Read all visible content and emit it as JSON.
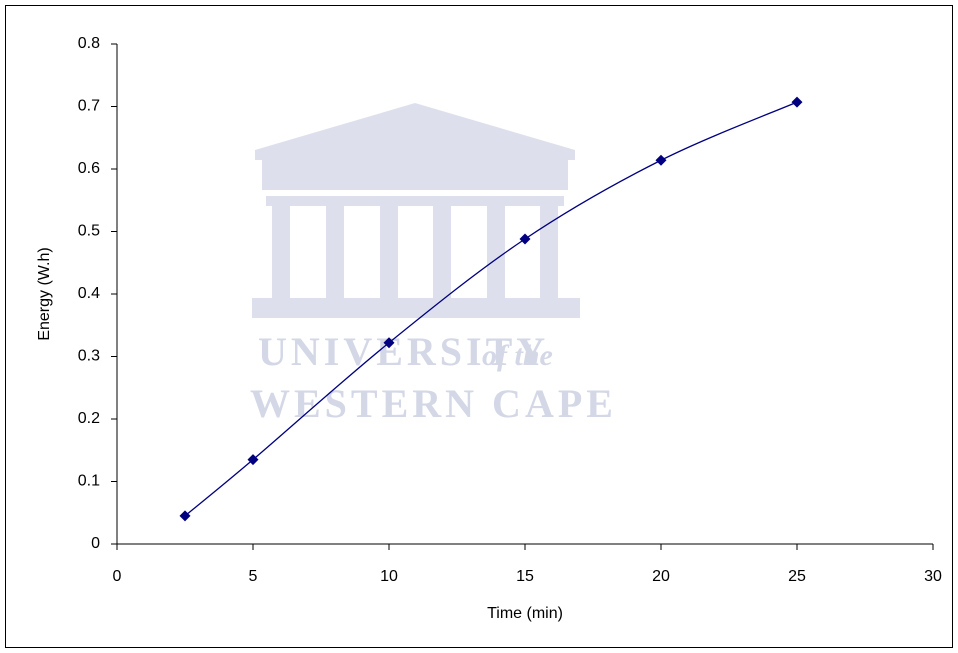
{
  "chart_data": {
    "type": "line",
    "smooth": true,
    "marker": "diamond",
    "x_label": "Time (min)",
    "y_label": "Energy (W.h)",
    "x": [
      2.5,
      5,
      10,
      15,
      20,
      25
    ],
    "series": [
      {
        "color": "#000080",
        "values": [
          0.045,
          0.135,
          0.322,
          0.488,
          0.614,
          0.707
        ]
      }
    ],
    "xlim": [
      0,
      30
    ],
    "xticks": [
      0,
      5,
      10,
      15,
      20,
      25,
      30
    ],
    "ylim": [
      0,
      0.8
    ],
    "yticks": [
      0,
      0.1,
      0.2,
      0.3,
      0.4,
      0.5,
      0.6,
      0.7,
      0.8
    ],
    "grid": false,
    "watermark": [
      "UNIVERSITY",
      "of the",
      "WESTERN CAPE"
    ]
  }
}
